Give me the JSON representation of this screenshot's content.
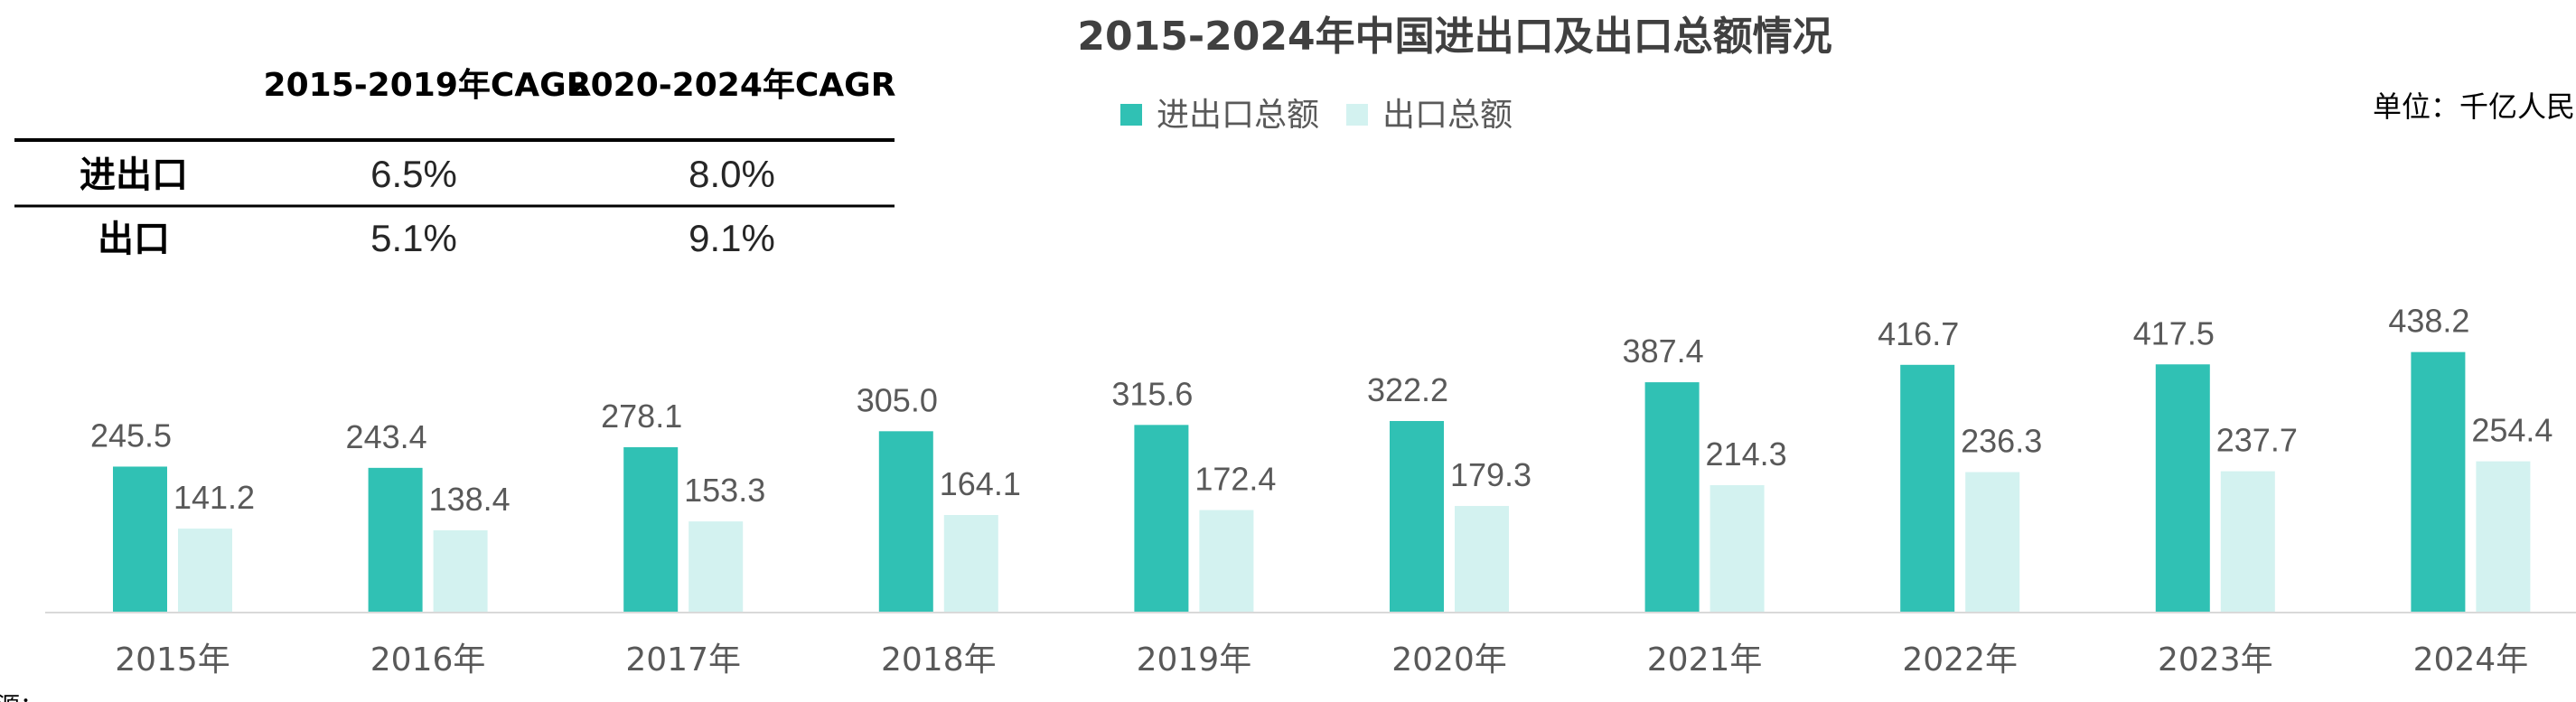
{
  "colors": {
    "total": "#30c1b4",
    "export": "#d3f2f0",
    "axis": "#d9d9d9",
    "text": "#595959"
  },
  "cagr_table": {
    "headers": [
      "2015-2019年CAGR",
      "2020-2024年CAGR"
    ],
    "rows": [
      {
        "label": "进出口",
        "values": [
          "6.5%",
          "8.0%"
        ]
      },
      {
        "label": "出口",
        "values": [
          "5.1%",
          "9.1%"
        ]
      }
    ]
  },
  "unit": "单位：千亿人民",
  "source": "来源：…",
  "chart_data": {
    "type": "bar",
    "title": "2015-2024年中国进出口及出口总额情况",
    "categories": [
      "2015年",
      "2016年",
      "2017年",
      "2018年",
      "2019年",
      "2020年",
      "2021年",
      "2022年",
      "2023年",
      "2024年"
    ],
    "series": [
      {
        "name": "进出口总额",
        "values": [
          245.5,
          243.4,
          278.1,
          305.0,
          315.6,
          322.2,
          387.4,
          416.7,
          417.5,
          438.2
        ]
      },
      {
        "name": "出口总额",
        "values": [
          141.2,
          138.4,
          153.3,
          164.1,
          172.4,
          179.3,
          214.3,
          236.3,
          237.7,
          254.4
        ]
      }
    ],
    "value_labels": [
      [
        "245.5",
        "243.4",
        "278.1",
        "305.0",
        "315.6",
        "322.2",
        "387.4",
        "416.7",
        "417.5",
        "438.2"
      ],
      [
        "141.2",
        "138.4",
        "153.3",
        "164.1",
        "172.4",
        "179.3",
        "214.3",
        "236.3",
        "237.7",
        "254.4"
      ]
    ],
    "ylim": [
      0,
      500
    ],
    "xlabel": "",
    "ylabel": "",
    "legend_position": "top-center",
    "grid": false
  }
}
